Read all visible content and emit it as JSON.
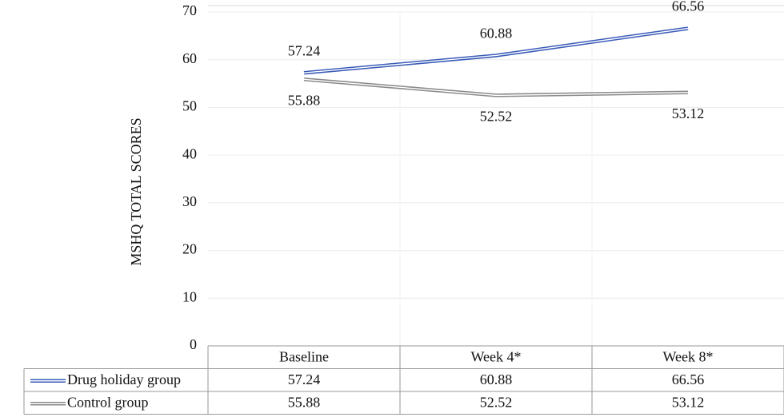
{
  "chart_data": {
    "type": "line",
    "y_label": "MSHQ TOTAL SCORES",
    "categories": [
      "Baseline",
      "Week 4*",
      "Week 8*"
    ],
    "series": [
      {
        "name": "Drug holiday group",
        "color": "#3a5bb8",
        "values": [
          57.24,
          60.88,
          66.56
        ]
      },
      {
        "name": "Control group",
        "color": "#8a8a8a",
        "values": [
          55.88,
          52.52,
          53.12
        ]
      }
    ],
    "ylim": [
      0,
      70
    ],
    "yticks": [
      0,
      10,
      20,
      30,
      40,
      50,
      60,
      70
    ],
    "grid": true
  }
}
